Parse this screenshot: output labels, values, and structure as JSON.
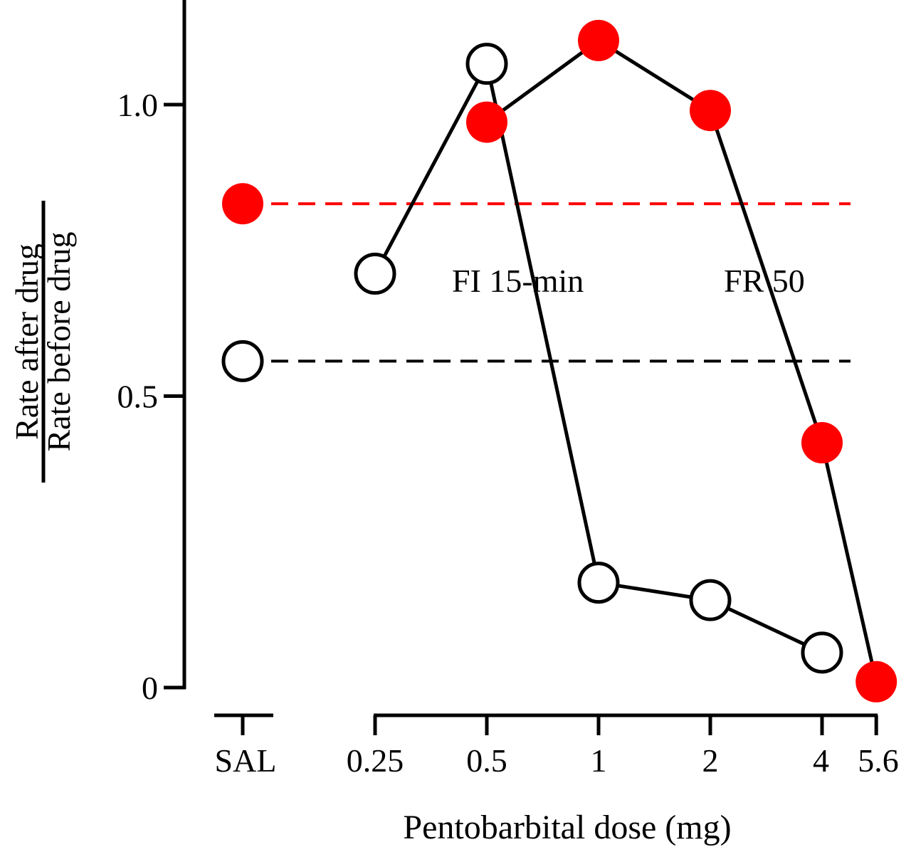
{
  "chart_data": {
    "type": "line",
    "title": "",
    "xlabel": "Pentobarbital dose (mg)",
    "ylabel_numerator": "Rate after drug",
    "ylabel_denominator": "Rate before drug",
    "ylim": [
      0,
      1.2
    ],
    "yticks": [
      {
        "value": 0,
        "label": "0"
      },
      {
        "value": 0.5,
        "label": "0.5"
      },
      {
        "value": 1.0,
        "label": "1.0"
      }
    ],
    "x_control": {
      "key": "SAL",
      "label": "SAL"
    },
    "x_doses": [
      {
        "key": "0.25",
        "value": 0.25,
        "label": "0.25"
      },
      {
        "key": "0.5",
        "value": 0.5,
        "label": "0.5"
      },
      {
        "key": "1",
        "value": 1,
        "label": "1"
      },
      {
        "key": "2",
        "value": 2,
        "label": "2"
      },
      {
        "key": "4",
        "value": 4,
        "label": "4"
      },
      {
        "key": "5.6",
        "value": 5.6,
        "label": "5.6"
      }
    ],
    "x_scale": "log",
    "grid": false,
    "series": [
      {
        "name": "FI 15-min",
        "label": "FI 15-min",
        "marker": "open-circle",
        "color": "#000000",
        "control_value": 0.56,
        "control_line_color": "#000000",
        "points": [
          {
            "x": 0.25,
            "y": 0.71
          },
          {
            "x": 0.5,
            "y": 1.07
          },
          {
            "x": 1,
            "y": 0.18
          },
          {
            "x": 2,
            "y": 0.15
          },
          {
            "x": 4,
            "y": 0.06
          }
        ]
      },
      {
        "name": "FR 50",
        "label": "FR 50",
        "marker": "filled-circle",
        "color": "#ff0000",
        "control_value": 0.83,
        "control_line_color": "#ff0000",
        "points": [
          {
            "x": 0.5,
            "y": 0.97
          },
          {
            "x": 1,
            "y": 1.11
          },
          {
            "x": 2,
            "y": 0.99
          },
          {
            "x": 4,
            "y": 0.42
          },
          {
            "x": 5.6,
            "y": 0.01
          }
        ]
      }
    ]
  }
}
